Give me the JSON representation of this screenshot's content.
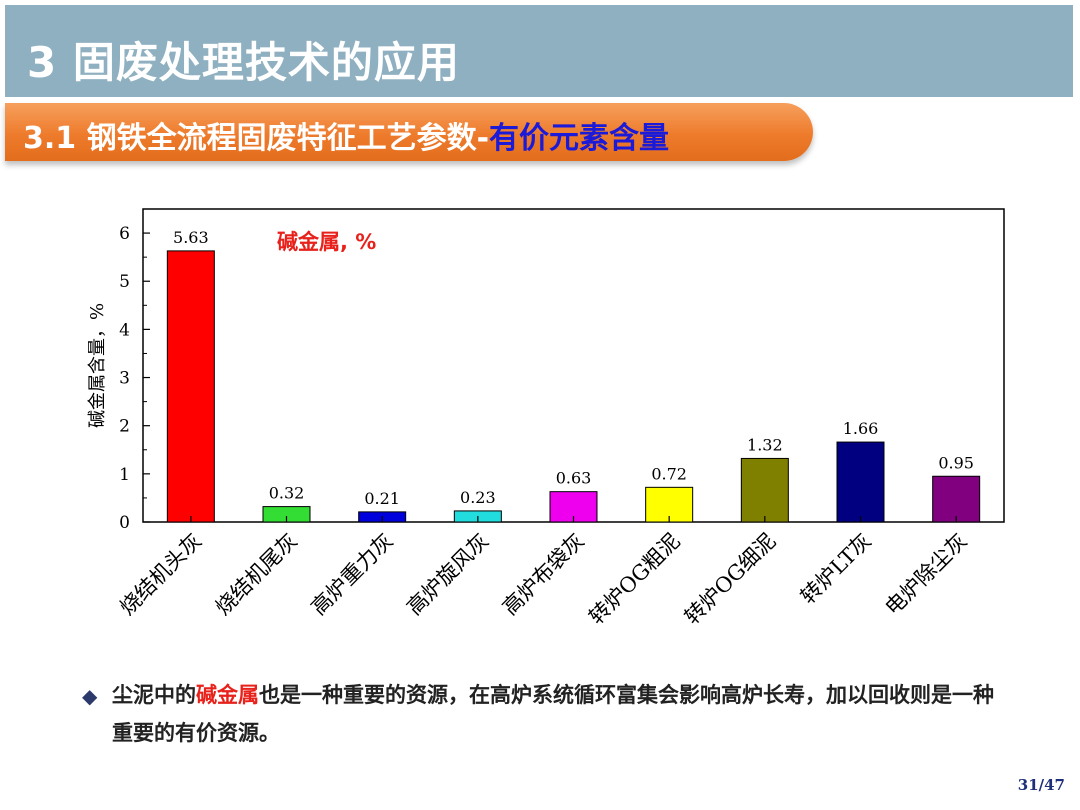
{
  "header": {
    "title": "3 固废处理技术的应用"
  },
  "subheader": {
    "main": "3.1 钢铁全流程固废特征工艺参数-",
    "accent": "有价元素含量"
  },
  "chart_data": {
    "type": "bar",
    "title": "碱金属, %",
    "ylabel": "碱金属含量，%",
    "xlabel": "",
    "ylim": [
      0,
      6.5
    ],
    "yticks": [
      0,
      1,
      2,
      3,
      4,
      5,
      6
    ],
    "grid": false,
    "categories": [
      "烧结机头灰",
      "烧结机尾灰",
      "高炉重力灰",
      "高炉旋风灰",
      "高炉布袋灰",
      "转炉OG粗泥",
      "转炉OG细泥",
      "转炉LT灰",
      "电炉除尘灰"
    ],
    "values": [
      5.63,
      0.32,
      0.21,
      0.23,
      0.63,
      0.72,
      1.32,
      1.66,
      0.95
    ],
    "value_labels": [
      "5.63",
      "0.32",
      "0.21",
      "0.23",
      "0.63",
      "0.72",
      "1.32",
      "1.66",
      "0.95"
    ],
    "colors": [
      "#ff0000",
      "#33dd33",
      "#0000dd",
      "#22dddd",
      "#ee00ee",
      "#ffff00",
      "#808000",
      "#000080",
      "#800080"
    ],
    "title_color": "#e8211b"
  },
  "note": {
    "bullet": "◆",
    "pre": "尘泥中的",
    "highlight": "碱金属",
    "post": "也是一种重要的资源，在高炉系统循环富集会影响高炉长寿，加以回收则是一种重要的有价资源。"
  },
  "page": {
    "number": "31/47"
  }
}
